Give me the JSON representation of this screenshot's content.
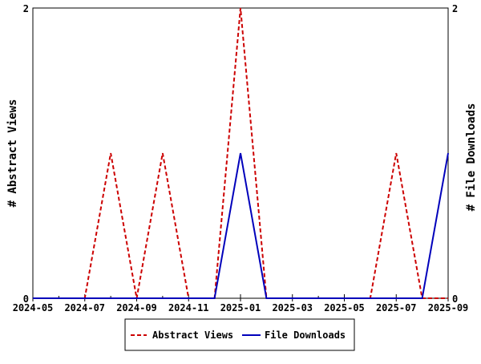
{
  "chart_data": {
    "type": "line",
    "x": [
      "2024-05",
      "2024-06",
      "2024-07",
      "2024-08",
      "2024-09",
      "2024-10",
      "2024-11",
      "2024-12",
      "2025-01",
      "2025-02",
      "2025-03",
      "2025-04",
      "2025-05",
      "2025-06",
      "2025-07",
      "2025-08",
      "2025-09"
    ],
    "xticklabels": [
      "2024-05",
      "2024-07",
      "2024-09",
      "2024-11",
      "2025-01",
      "2025-03",
      "2025-05",
      "2025-07",
      "2025-09"
    ],
    "series": [
      {
        "name": "Abstract Views",
        "axis": "left",
        "color": "#cc0000",
        "style": "dashed",
        "values": [
          0,
          0,
          0,
          1,
          0,
          1,
          0,
          0,
          2,
          0,
          0,
          0,
          0,
          0,
          1,
          0,
          0
        ]
      },
      {
        "name": "File Downloads",
        "axis": "right",
        "color": "#0000bb",
        "style": "solid",
        "values": [
          0,
          0,
          0,
          0,
          0,
          0,
          0,
          0,
          1,
          0,
          0,
          0,
          0,
          0,
          0,
          0,
          1
        ]
      }
    ],
    "ylabel_left": "# Abstract Views",
    "ylabel_right": "# File Downloads",
    "ylim_left": [
      0,
      2
    ],
    "ylim_right": [
      0,
      2
    ],
    "yticklabels_left": [
      "0",
      "2"
    ],
    "yticklabels_right": [
      "0",
      "2"
    ],
    "grid": false,
    "legend_position": "bottom-center"
  }
}
